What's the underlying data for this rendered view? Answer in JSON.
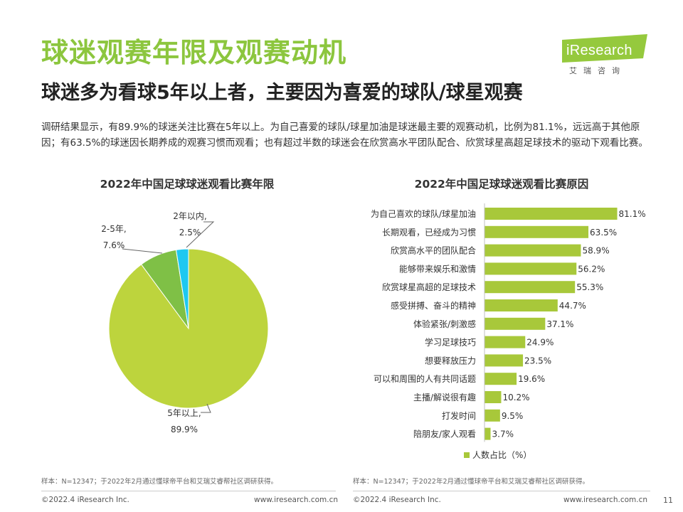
{
  "header": {
    "title": "球迷观赛年限及观赛动机",
    "subtitle": "球迷多为看球5年以上者，主要因为喜爱的球队/球星观赛",
    "logo_text": "iResearch",
    "logo_cn": "艾瑞咨询"
  },
  "description": "调研结果显示，有89.9%的球迷关注比赛在5年以上。为自己喜爱的球队/球星加油是球迷最主要的观赛动机，比例为81.1%，远远高于其他原因；有63.5%的球迷因长期养成的观赛习惯而观看；也有超过半数的球迷会在欣赏高水平团队配合、欣赏球星高超足球技术的驱动下观看比赛。",
  "chart_data": [
    {
      "type": "pie",
      "title": "2022年中国足球球迷观看比赛年限",
      "slices": [
        {
          "label": "5年以上,",
          "value": 89.9,
          "value_label": "89.9%",
          "color": "#bdd43d"
        },
        {
          "label": "2-5年,",
          "value": 7.6,
          "value_label": "7.6%",
          "color": "#7fc046"
        },
        {
          "label": "2年以内,",
          "value": 2.5,
          "value_label": "2.5%",
          "color": "#1ec8f0"
        }
      ]
    },
    {
      "type": "bar",
      "orientation": "horizontal",
      "title": "2022年中国足球球迷观看比赛原因",
      "categories": [
        "为自己喜欢的球队/球星加油",
        "长期观看，已经成为习惯",
        "欣赏高水平的团队配合",
        "能够带来娱乐和激情",
        "欣赏球星高超的足球技术",
        "感受拼搏、奋斗的精神",
        "体验紧张/刺激感",
        "学习足球技巧",
        "想要释放压力",
        "可以和周围的人有共同话题",
        "主播/解说很有趣",
        "打发时间",
        "陪朋友/家人观看"
      ],
      "values": [
        81.1,
        63.5,
        58.9,
        56.2,
        55.3,
        44.7,
        37.1,
        24.9,
        23.5,
        19.6,
        10.2,
        9.5,
        3.7
      ],
      "value_labels": [
        "81.1%",
        "63.5%",
        "58.9%",
        "56.2%",
        "55.3%",
        "44.7%",
        "37.1%",
        "24.9%",
        "23.5%",
        "19.6%",
        "10.2%",
        "9.5%",
        "3.7%"
      ],
      "legend": "人数占比（%）",
      "color": "#a8c83a",
      "xlim": [
        0,
        100
      ]
    }
  ],
  "notes": {
    "left": "样本：N=12347；于2022年2月通过懂球帝平台和艾瑞艾睿帮社区调研获得。",
    "right": "样本：N=12347；于2022年2月通过懂球帝平台和艾瑞艾睿帮社区调研获得。"
  },
  "footer": {
    "left_copyright": "©2022.4 iResearch Inc.",
    "left_url": "www.iresearch.com.cn",
    "right_copyright": "©2022.4 iResearch Inc.",
    "right_url": "www.iresearch.com.cn",
    "page_number": "11"
  }
}
